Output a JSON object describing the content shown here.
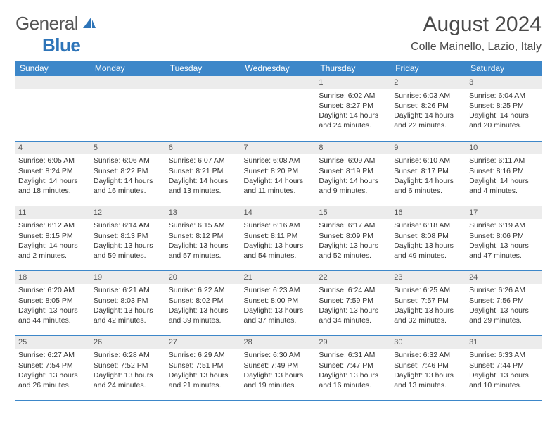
{
  "brand": {
    "general": "General",
    "blue": "Blue"
  },
  "title": "August 2024",
  "location": "Colle Mainello, Lazio, Italy",
  "colors": {
    "brand_blue": "#3d87c9",
    "header_bg": "#3d87c9",
    "daynum_bg": "#ececec",
    "text": "#333333"
  },
  "weekday_headers": [
    "Sunday",
    "Monday",
    "Tuesday",
    "Wednesday",
    "Thursday",
    "Friday",
    "Saturday"
  ],
  "weeks": [
    [
      null,
      null,
      null,
      null,
      {
        "d": "1",
        "sr": "Sunrise: 6:02 AM",
        "ss": "Sunset: 8:27 PM",
        "dl1": "Daylight: 14 hours",
        "dl2": "and 24 minutes."
      },
      {
        "d": "2",
        "sr": "Sunrise: 6:03 AM",
        "ss": "Sunset: 8:26 PM",
        "dl1": "Daylight: 14 hours",
        "dl2": "and 22 minutes."
      },
      {
        "d": "3",
        "sr": "Sunrise: 6:04 AM",
        "ss": "Sunset: 8:25 PM",
        "dl1": "Daylight: 14 hours",
        "dl2": "and 20 minutes."
      }
    ],
    [
      {
        "d": "4",
        "sr": "Sunrise: 6:05 AM",
        "ss": "Sunset: 8:24 PM",
        "dl1": "Daylight: 14 hours",
        "dl2": "and 18 minutes."
      },
      {
        "d": "5",
        "sr": "Sunrise: 6:06 AM",
        "ss": "Sunset: 8:22 PM",
        "dl1": "Daylight: 14 hours",
        "dl2": "and 16 minutes."
      },
      {
        "d": "6",
        "sr": "Sunrise: 6:07 AM",
        "ss": "Sunset: 8:21 PM",
        "dl1": "Daylight: 14 hours",
        "dl2": "and 13 minutes."
      },
      {
        "d": "7",
        "sr": "Sunrise: 6:08 AM",
        "ss": "Sunset: 8:20 PM",
        "dl1": "Daylight: 14 hours",
        "dl2": "and 11 minutes."
      },
      {
        "d": "8",
        "sr": "Sunrise: 6:09 AM",
        "ss": "Sunset: 8:19 PM",
        "dl1": "Daylight: 14 hours",
        "dl2": "and 9 minutes."
      },
      {
        "d": "9",
        "sr": "Sunrise: 6:10 AM",
        "ss": "Sunset: 8:17 PM",
        "dl1": "Daylight: 14 hours",
        "dl2": "and 6 minutes."
      },
      {
        "d": "10",
        "sr": "Sunrise: 6:11 AM",
        "ss": "Sunset: 8:16 PM",
        "dl1": "Daylight: 14 hours",
        "dl2": "and 4 minutes."
      }
    ],
    [
      {
        "d": "11",
        "sr": "Sunrise: 6:12 AM",
        "ss": "Sunset: 8:15 PM",
        "dl1": "Daylight: 14 hours",
        "dl2": "and 2 minutes."
      },
      {
        "d": "12",
        "sr": "Sunrise: 6:14 AM",
        "ss": "Sunset: 8:13 PM",
        "dl1": "Daylight: 13 hours",
        "dl2": "and 59 minutes."
      },
      {
        "d": "13",
        "sr": "Sunrise: 6:15 AM",
        "ss": "Sunset: 8:12 PM",
        "dl1": "Daylight: 13 hours",
        "dl2": "and 57 minutes."
      },
      {
        "d": "14",
        "sr": "Sunrise: 6:16 AM",
        "ss": "Sunset: 8:11 PM",
        "dl1": "Daylight: 13 hours",
        "dl2": "and 54 minutes."
      },
      {
        "d": "15",
        "sr": "Sunrise: 6:17 AM",
        "ss": "Sunset: 8:09 PM",
        "dl1": "Daylight: 13 hours",
        "dl2": "and 52 minutes."
      },
      {
        "d": "16",
        "sr": "Sunrise: 6:18 AM",
        "ss": "Sunset: 8:08 PM",
        "dl1": "Daylight: 13 hours",
        "dl2": "and 49 minutes."
      },
      {
        "d": "17",
        "sr": "Sunrise: 6:19 AM",
        "ss": "Sunset: 8:06 PM",
        "dl1": "Daylight: 13 hours",
        "dl2": "and 47 minutes."
      }
    ],
    [
      {
        "d": "18",
        "sr": "Sunrise: 6:20 AM",
        "ss": "Sunset: 8:05 PM",
        "dl1": "Daylight: 13 hours",
        "dl2": "and 44 minutes."
      },
      {
        "d": "19",
        "sr": "Sunrise: 6:21 AM",
        "ss": "Sunset: 8:03 PM",
        "dl1": "Daylight: 13 hours",
        "dl2": "and 42 minutes."
      },
      {
        "d": "20",
        "sr": "Sunrise: 6:22 AM",
        "ss": "Sunset: 8:02 PM",
        "dl1": "Daylight: 13 hours",
        "dl2": "and 39 minutes."
      },
      {
        "d": "21",
        "sr": "Sunrise: 6:23 AM",
        "ss": "Sunset: 8:00 PM",
        "dl1": "Daylight: 13 hours",
        "dl2": "and 37 minutes."
      },
      {
        "d": "22",
        "sr": "Sunrise: 6:24 AM",
        "ss": "Sunset: 7:59 PM",
        "dl1": "Daylight: 13 hours",
        "dl2": "and 34 minutes."
      },
      {
        "d": "23",
        "sr": "Sunrise: 6:25 AM",
        "ss": "Sunset: 7:57 PM",
        "dl1": "Daylight: 13 hours",
        "dl2": "and 32 minutes."
      },
      {
        "d": "24",
        "sr": "Sunrise: 6:26 AM",
        "ss": "Sunset: 7:56 PM",
        "dl1": "Daylight: 13 hours",
        "dl2": "and 29 minutes."
      }
    ],
    [
      {
        "d": "25",
        "sr": "Sunrise: 6:27 AM",
        "ss": "Sunset: 7:54 PM",
        "dl1": "Daylight: 13 hours",
        "dl2": "and 26 minutes."
      },
      {
        "d": "26",
        "sr": "Sunrise: 6:28 AM",
        "ss": "Sunset: 7:52 PM",
        "dl1": "Daylight: 13 hours",
        "dl2": "and 24 minutes."
      },
      {
        "d": "27",
        "sr": "Sunrise: 6:29 AM",
        "ss": "Sunset: 7:51 PM",
        "dl1": "Daylight: 13 hours",
        "dl2": "and 21 minutes."
      },
      {
        "d": "28",
        "sr": "Sunrise: 6:30 AM",
        "ss": "Sunset: 7:49 PM",
        "dl1": "Daylight: 13 hours",
        "dl2": "and 19 minutes."
      },
      {
        "d": "29",
        "sr": "Sunrise: 6:31 AM",
        "ss": "Sunset: 7:47 PM",
        "dl1": "Daylight: 13 hours",
        "dl2": "and 16 minutes."
      },
      {
        "d": "30",
        "sr": "Sunrise: 6:32 AM",
        "ss": "Sunset: 7:46 PM",
        "dl1": "Daylight: 13 hours",
        "dl2": "and 13 minutes."
      },
      {
        "d": "31",
        "sr": "Sunrise: 6:33 AM",
        "ss": "Sunset: 7:44 PM",
        "dl1": "Daylight: 13 hours",
        "dl2": "and 10 minutes."
      }
    ]
  ]
}
